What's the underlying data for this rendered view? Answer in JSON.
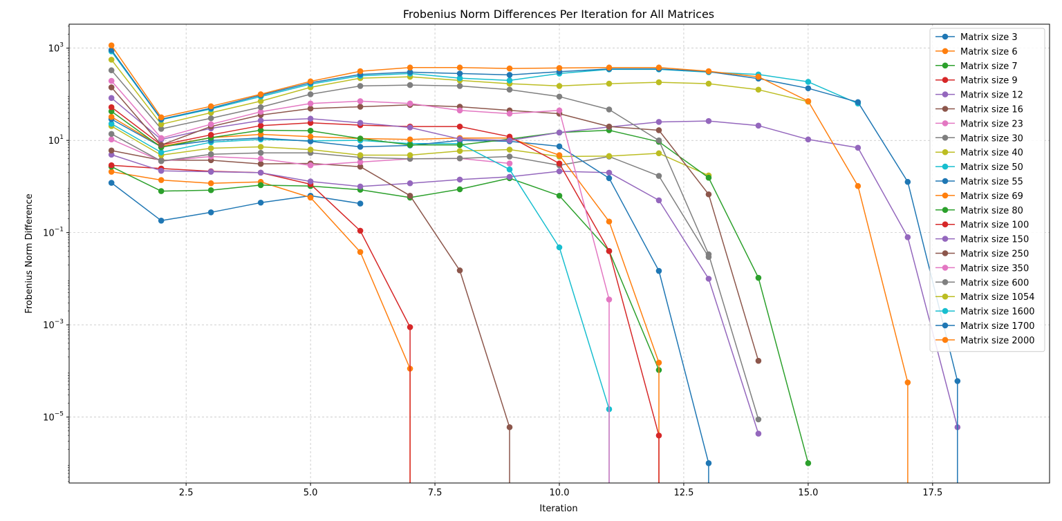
{
  "chart_data": {
    "type": "line",
    "title": "Frobenius Norm Differences Per Iteration for All Matrices",
    "xlabel": "Iteration",
    "ylabel": "Frobenius Norm Difference",
    "xscale": "linear",
    "yscale": "log",
    "xlim": [
      0.15,
      19.85
    ],
    "ylim_log10": [
      -6.43,
      3.52
    ],
    "xticks": [
      2.5,
      5.0,
      7.5,
      10.0,
      12.5,
      15.0,
      17.5
    ],
    "xtick_labels": [
      "2.5",
      "5.0",
      "7.5",
      "10.0",
      "12.5",
      "15.0",
      "17.5"
    ],
    "yticks_log10": [
      -5,
      -3,
      -1,
      1,
      3
    ],
    "ytick_labels": [
      "10",
      "10",
      "10",
      "10",
      "10"
    ],
    "ytick_exponents": [
      "−5",
      "−3",
      "−1",
      "1",
      "3"
    ],
    "grid": true,
    "legend_position": "top-right",
    "series": [
      {
        "name": "Matrix size 3",
        "color": "#1f77b4",
        "x": [
          1,
          2,
          3,
          4,
          5,
          6
        ],
        "y_log10": [
          0.08,
          -0.74,
          -0.56,
          -0.35,
          -0.2,
          -0.37
        ],
        "drop_to_zero_at": null
      },
      {
        "name": "Matrix size 6",
        "color": "#ff7f0e",
        "x": [
          1,
          2,
          3,
          4,
          5,
          6,
          7
        ],
        "y_log10": [
          0.32,
          0.14,
          0.07,
          0.1,
          -0.24,
          -1.42,
          -3.95
        ],
        "drop_to_zero_at": 7
      },
      {
        "name": "Matrix size 7",
        "color": "#2ca02c",
        "x": [
          1,
          2,
          3,
          4,
          5,
          6,
          7,
          8,
          9,
          10,
          11,
          12
        ],
        "y_log10": [
          0.43,
          -0.1,
          -0.08,
          0.03,
          0.01,
          -0.07,
          -0.24,
          -0.06,
          0.18,
          -0.2,
          -1.4,
          -3.98
        ],
        "drop_to_zero_at": null
      },
      {
        "name": "Matrix size 9",
        "color": "#d62728",
        "x": [
          1,
          2,
          3,
          4,
          5,
          6,
          7
        ],
        "y_log10": [
          0.46,
          0.39,
          0.33,
          0.3,
          0.05,
          -0.96,
          -3.05
        ],
        "drop_to_zero_at": 7
      },
      {
        "name": "Matrix size 12",
        "color": "#9467bd",
        "x": [
          1,
          2,
          3,
          4,
          5,
          6,
          7,
          8,
          9,
          10,
          11,
          12,
          13,
          14
        ],
        "y_log10": [
          0.69,
          0.34,
          0.32,
          0.3,
          0.11,
          0.0,
          0.07,
          0.15,
          0.21,
          0.33,
          0.3,
          -0.3,
          -2.0,
          -5.36
        ],
        "drop_to_zero_at": null
      },
      {
        "name": "Matrix size 16",
        "color": "#8c564b",
        "x": [
          1,
          2,
          3,
          4,
          5,
          6,
          7,
          8,
          9
        ],
        "y_log10": [
          0.78,
          0.57,
          0.57,
          0.49,
          0.5,
          0.43,
          -0.2,
          -1.82,
          -5.22
        ],
        "drop_to_zero_at": 9
      },
      {
        "name": "Matrix size 23",
        "color": "#e377c2",
        "x": [
          1,
          2,
          3,
          4,
          5,
          6,
          7,
          8,
          9
        ],
        "y_log10": [
          1.02,
          0.55,
          0.65,
          0.6,
          0.46,
          0.53,
          0.6,
          0.61,
          0.5
        ],
        "drop_to_zero_at": null
      },
      {
        "name": "Matrix size 30",
        "color": "#7f7f7f",
        "x": [
          1,
          2,
          3,
          4,
          5,
          6,
          7,
          8,
          9,
          10,
          11,
          12,
          13
        ],
        "y_log10": [
          1.14,
          0.55,
          0.7,
          0.73,
          0.73,
          0.63,
          0.6,
          0.61,
          0.65,
          0.46,
          0.65,
          0.23,
          -1.53
        ],
        "drop_to_zero_at": null
      },
      {
        "name": "Matrix size 40",
        "color": "#bcbd22",
        "x": [
          1,
          2,
          3,
          4,
          5,
          6,
          7,
          8,
          9,
          10,
          11,
          12,
          13
        ],
        "y_log10": [
          1.31,
          0.68,
          0.83,
          0.86,
          0.8,
          0.68,
          0.68,
          0.77,
          0.8,
          0.65,
          0.66,
          0.72,
          0.24
        ],
        "drop_to_zero_at": null
      },
      {
        "name": "Matrix size 50",
        "color": "#17becf",
        "x": [
          1,
          2,
          3,
          4,
          5,
          6,
          7,
          8,
          9,
          10,
          11
        ],
        "y_log10": [
          1.36,
          0.74,
          0.96,
          1.02,
          0.99,
          1.0,
          0.93,
          0.93,
          0.37,
          -1.32,
          -4.83
        ],
        "drop_to_zero_at": 11
      },
      {
        "name": "Matrix size 55",
        "color": "#1f77b4",
        "x": [
          1,
          2,
          3,
          4,
          5,
          6,
          7,
          8,
          9,
          10,
          11,
          12,
          13
        ],
        "y_log10": [
          1.46,
          0.86,
          1.0,
          1.05,
          0.98,
          0.86,
          0.89,
          1.0,
          0.98,
          0.87,
          0.18,
          -1.83,
          -6.0
        ],
        "drop_to_zero_at": 13
      },
      {
        "name": "Matrix size 69",
        "color": "#ff7f0e",
        "x": [
          1,
          2,
          3,
          4,
          5,
          6,
          7,
          8,
          9,
          10,
          11,
          12
        ],
        "y_log10": [
          1.51,
          0.87,
          1.06,
          1.13,
          1.08,
          1.04,
          1.02,
          1.05,
          1.05,
          0.68,
          -0.76,
          -3.82
        ],
        "drop_to_zero_at": 12
      },
      {
        "name": "Matrix size 80",
        "color": "#2ca02c",
        "x": [
          1,
          2,
          3,
          4,
          5,
          6,
          7,
          8,
          9,
          10,
          11,
          12,
          13,
          14,
          15
        ],
        "y_log10": [
          1.63,
          0.85,
          1.06,
          1.22,
          1.21,
          1.04,
          0.9,
          0.9,
          1.03,
          1.17,
          1.22,
          0.97,
          0.19,
          -1.98,
          -6.0
        ],
        "drop_to_zero_at": null
      },
      {
        "name": "Matrix size 100",
        "color": "#d62728",
        "x": [
          1,
          2,
          3,
          4,
          5,
          6,
          7,
          8,
          9,
          10,
          11,
          12
        ],
        "y_log10": [
          1.72,
          0.9,
          1.12,
          1.32,
          1.38,
          1.33,
          1.3,
          1.3,
          1.08,
          0.5,
          -1.4,
          -5.4
        ],
        "drop_to_zero_at": 12
      },
      {
        "name": "Matrix size 150",
        "color": "#9467bd",
        "x": [
          1,
          2,
          3,
          4,
          5,
          6,
          7,
          8,
          9,
          10,
          11,
          12,
          13,
          14,
          15,
          16,
          17,
          18
        ],
        "y_log10": [
          1.92,
          1.02,
          1.26,
          1.43,
          1.47,
          1.38,
          1.28,
          1.03,
          1.0,
          1.17,
          1.29,
          1.4,
          1.42,
          1.32,
          1.02,
          0.84,
          -1.1,
          -5.22
        ],
        "drop_to_zero_at": null
      },
      {
        "name": "Matrix size 250",
        "color": "#8c564b",
        "x": [
          1,
          2,
          3,
          4,
          5,
          6,
          7,
          8,
          9,
          10,
          11,
          12,
          13,
          14
        ],
        "y_log10": [
          2.15,
          0.9,
          1.3,
          1.55,
          1.69,
          1.73,
          1.77,
          1.73,
          1.65,
          1.58,
          1.3,
          1.22,
          -0.17,
          -3.78
        ],
        "drop_to_zero_at": null
      },
      {
        "name": "Matrix size 350",
        "color": "#e377c2",
        "x": [
          1,
          2,
          3,
          4,
          5,
          6,
          7,
          8,
          9,
          10,
          11
        ],
        "y_log10": [
          2.29,
          1.05,
          1.35,
          1.62,
          1.8,
          1.85,
          1.8,
          1.65,
          1.58,
          1.65,
          -2.45
        ],
        "drop_to_zero_at": 11
      },
      {
        "name": "Matrix size 600",
        "color": "#7f7f7f",
        "x": [
          1,
          2,
          3,
          4,
          5,
          6,
          7,
          8,
          9,
          10,
          11,
          12,
          13,
          14
        ],
        "y_log10": [
          2.52,
          1.25,
          1.48,
          1.72,
          2.0,
          2.18,
          2.2,
          2.18,
          2.1,
          1.95,
          1.67,
          1.0,
          -1.47,
          -5.05
        ],
        "drop_to_zero_at": null
      },
      {
        "name": "Matrix size 1054",
        "color": "#bcbd22",
        "x": [
          1,
          2,
          3,
          4,
          5,
          6,
          7,
          8,
          9,
          10,
          11,
          12,
          13,
          14,
          15
        ],
        "y_log10": [
          2.75,
          1.35,
          1.6,
          1.85,
          2.15,
          2.35,
          2.38,
          2.3,
          2.23,
          2.18,
          2.23,
          2.26,
          2.23,
          2.1,
          1.84
        ],
        "drop_to_zero_at": null
      },
      {
        "name": "Matrix size 1600",
        "color": "#17becf",
        "x": [
          1,
          2,
          3,
          4,
          5,
          6,
          7,
          8,
          9,
          10,
          11,
          12,
          13,
          14,
          15,
          16
        ],
        "y_log10": [
          2.93,
          1.45,
          1.68,
          1.95,
          2.22,
          2.4,
          2.45,
          2.35,
          2.3,
          2.45,
          2.54,
          2.54,
          2.48,
          2.43,
          2.27,
          1.8
        ],
        "drop_to_zero_at": null
      },
      {
        "name": "Matrix size 1700",
        "color": "#1f77b4",
        "x": [
          1,
          2,
          3,
          4,
          5,
          6,
          7,
          8,
          9,
          10,
          11,
          12,
          13,
          14,
          15,
          16,
          17,
          18
        ],
        "y_log10": [
          2.96,
          1.46,
          1.7,
          1.98,
          2.25,
          2.43,
          2.48,
          2.45,
          2.42,
          2.49,
          2.55,
          2.55,
          2.49,
          2.34,
          2.13,
          1.83,
          0.1,
          -4.22
        ],
        "drop_to_zero_at": 18
      },
      {
        "name": "Matrix size 2000",
        "color": "#ff7f0e",
        "x": [
          1,
          2,
          3,
          4,
          5,
          6,
          7,
          8,
          9,
          10,
          11,
          12,
          13,
          14,
          15,
          16,
          17
        ],
        "y_log10": [
          3.06,
          1.5,
          1.74,
          2.0,
          2.28,
          2.5,
          2.58,
          2.58,
          2.56,
          2.57,
          2.58,
          2.58,
          2.5,
          2.38,
          1.85,
          0.01,
          -4.25
        ],
        "drop_to_zero_at": 17
      }
    ]
  }
}
